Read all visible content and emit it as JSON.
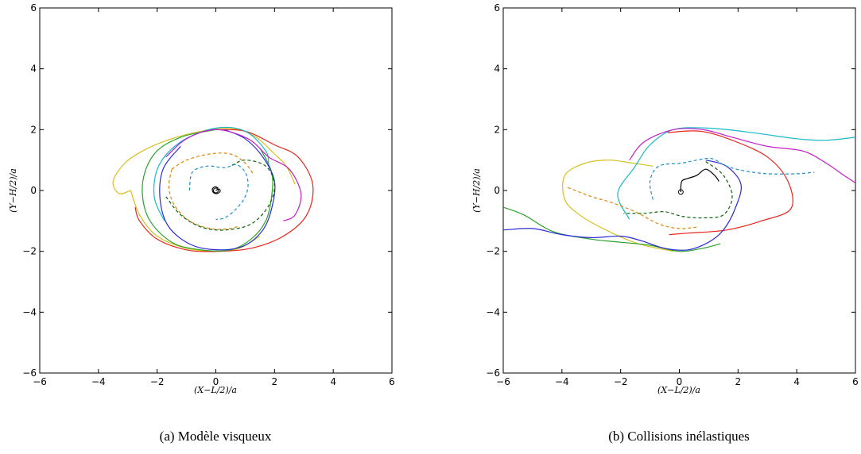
{
  "panels": [
    {
      "caption": "(a)  Modèle visqueux",
      "xlabel": "(X−L/2)/a",
      "ylabel": "(Y−H/2)/a",
      "chart_data": {
        "type": "line",
        "xlim": [
          -6,
          6
        ],
        "ylim": [
          -6,
          6
        ],
        "xticks": [
          "−6",
          "−4",
          "−2",
          "0",
          "2",
          "4",
          "6"
        ],
        "yticks": [
          "−6",
          "−4",
          "−2",
          "0",
          "2",
          "4",
          "6"
        ],
        "grid": false,
        "series": [
          {
            "color": "#d4c021",
            "dash": false,
            "points": [
              [
                -2.9,
                0.0
              ],
              [
                -3.3,
                -0.1
              ],
              [
                -3.5,
                0.3
              ],
              [
                -3.1,
                0.9
              ],
              [
                -2.4,
                1.35
              ],
              [
                -1.5,
                1.7
              ],
              [
                -0.5,
                1.95
              ],
              [
                0.5,
                2.05
              ],
              [
                1.3,
                1.8
              ],
              [
                2.0,
                1.2
              ],
              [
                2.4,
                0.8
              ],
              [
                2.7,
                0.2
              ]
            ]
          },
          {
            "color": "#d4c021",
            "dash": false,
            "points": [
              [
                -2.9,
                0.0
              ],
              [
                -2.6,
                -0.8
              ],
              [
                -2.0,
                -1.5
              ],
              [
                -1.0,
                -1.9
              ],
              [
                0,
                -2.0
              ],
              [
                0.8,
                -1.9
              ],
              [
                1.5,
                -1.5
              ]
            ]
          },
          {
            "color": "#e8241c",
            "dash": false,
            "points": [
              [
                0,
                2.0
              ],
              [
                1.0,
                1.95
              ],
              [
                2.0,
                1.5
              ],
              [
                2.8,
                1.1
              ],
              [
                3.3,
                0.2
              ],
              [
                3.1,
                -0.8
              ],
              [
                2.3,
                -1.5
              ],
              [
                1.2,
                -1.9
              ],
              [
                0,
                -2.0
              ],
              [
                -1.0,
                -1.95
              ],
              [
                -2.0,
                -1.6
              ],
              [
                -2.6,
                -1.0
              ],
              [
                -2.75,
                -0.55
              ]
            ]
          },
          {
            "color": "#2ca02c",
            "dash": false,
            "points": [
              [
                0,
                2.0
              ],
              [
                -1.2,
                1.75
              ],
              [
                -2.1,
                1.2
              ],
              [
                -2.5,
                0.2
              ],
              [
                -2.3,
                -0.9
              ],
              [
                -1.5,
                -1.7
              ],
              [
                -0.5,
                -1.95
              ],
              [
                0.5,
                -1.95
              ],
              [
                1.2,
                -1.6
              ],
              [
                1.7,
                -1.0
              ],
              [
                1.9,
                -0.2
              ],
              [
                1.9,
                0.6
              ],
              [
                1.5,
                1.4
              ]
            ]
          },
          {
            "color": "#18b9c8",
            "dash": false,
            "points": [
              [
                -1.75,
                -1.0
              ],
              [
                -2.1,
                -0.2
              ],
              [
                -1.95,
                0.8
              ],
              [
                -1.2,
                1.6
              ],
              [
                0,
                2.05
              ],
              [
                1.0,
                1.95
              ],
              [
                1.7,
                1.3
              ],
              [
                1.8,
                0.8
              ]
            ]
          },
          {
            "color": "#2a2ad6",
            "dash": false,
            "points": [
              [
                -1.2,
                1.45
              ],
              [
                -1.8,
                0.7
              ],
              [
                -1.9,
                -0.3
              ],
              [
                -1.6,
                -1.2
              ],
              [
                -0.8,
                -1.8
              ],
              [
                0.2,
                -1.95
              ],
              [
                1.0,
                -1.8
              ],
              [
                1.6,
                -1.3
              ],
              [
                1.9,
                -0.6
              ],
              [
                2.0,
                0.3
              ],
              [
                1.6,
                1.1
              ],
              [
                1.0,
                1.7
              ],
              [
                0.3,
                2.0
              ]
            ]
          },
          {
            "color": "#c21fc8",
            "dash": false,
            "points": [
              [
                -1.7,
                1.1
              ],
              [
                -1.0,
                1.7
              ],
              [
                0,
                2.0
              ],
              [
                1.1,
                1.7
              ],
              [
                1.8,
                1.1
              ],
              [
                2.5,
                0.7
              ],
              [
                2.9,
                -0.1
              ],
              [
                2.7,
                -0.8
              ],
              [
                2.3,
                -1.0
              ]
            ]
          },
          {
            "color": "#e0850c",
            "dash": true,
            "points": [
              [
                -1.5,
                0.7
              ],
              [
                -1.0,
                1.0
              ],
              [
                -0.2,
                1.2
              ],
              [
                0.5,
                1.2
              ],
              [
                1.0,
                0.9
              ],
              [
                1.3,
                0.5
              ]
            ]
          },
          {
            "color": "#e0850c",
            "dash": true,
            "points": [
              [
                -1.5,
                0.7
              ],
              [
                -1.6,
                0.1
              ],
              [
                -1.4,
                -0.5
              ],
              [
                -0.9,
                -1.0
              ],
              [
                -0.2,
                -1.25
              ],
              [
                0.5,
                -1.25
              ],
              [
                0.8,
                -1.15
              ]
            ]
          },
          {
            "color": "#0b610b",
            "dash": true,
            "points": [
              [
                -1.7,
                -0.2
              ],
              [
                -1.2,
                -0.8
              ],
              [
                -0.5,
                -1.2
              ],
              [
                0.3,
                -1.3
              ],
              [
                1.2,
                -1.1
              ],
              [
                1.8,
                -0.5
              ],
              [
                2.0,
                0.2
              ],
              [
                1.7,
                0.8
              ],
              [
                1.0,
                1.0
              ],
              [
                0.5,
                0.8
              ]
            ]
          },
          {
            "color": "#1f8fc8",
            "dash": true,
            "points": [
              [
                -0.9,
                0.0
              ],
              [
                -0.8,
                0.6
              ],
              [
                -0.3,
                0.8
              ],
              [
                0.3,
                0.75
              ],
              [
                0.7,
                0.85
              ],
              [
                1.0,
                0.6
              ],
              [
                1.1,
                0.2
              ],
              [
                1.0,
                -0.2
              ],
              [
                0.7,
                -0.6
              ],
              [
                0.3,
                -0.9
              ],
              [
                0.0,
                -0.95
              ]
            ]
          },
          {
            "color": "#000000",
            "dash": false,
            "points": [
              [
                0,
                0
              ],
              [
                0.1,
                0.05
              ],
              [
                0.15,
                -0.02
              ],
              [
                0.05,
                -0.1
              ],
              [
                -0.08,
                -0.07
              ],
              [
                -0.12,
                0.05
              ],
              [
                -0.02,
                0.12
              ],
              [
                0.08,
                0.08
              ]
            ]
          }
        ]
      }
    },
    {
      "caption": "(b)  Collisions inélastiques",
      "xlabel": "(X−L/2)/a",
      "ylabel": "(Y−H/2)/a",
      "chart_data": {
        "type": "line",
        "xlim": [
          -6,
          6
        ],
        "ylim": [
          -6,
          6
        ],
        "xticks": [
          "−6",
          "−4",
          "−2",
          "0",
          "2",
          "4",
          "6"
        ],
        "yticks": [
          "−6",
          "−4",
          "−2",
          "0",
          "2",
          "4",
          "6"
        ],
        "grid": false,
        "series": [
          {
            "color": "#d4c021",
            "dash": false,
            "points": [
              [
                -0.9,
                0.8
              ],
              [
                -1.6,
                0.9
              ],
              [
                -2.4,
                1.0
              ],
              [
                -3.2,
                0.9
              ],
              [
                -3.9,
                0.5
              ],
              [
                -3.9,
                -0.3
              ],
              [
                -3.4,
                -0.8
              ],
              [
                -2.5,
                -1.3
              ],
              [
                -1.4,
                -1.75
              ],
              [
                -0.2,
                -2.0
              ]
            ]
          },
          {
            "color": "#e8241c",
            "dash": false,
            "points": [
              [
                -0.4,
                1.9
              ],
              [
                0.7,
                1.95
              ],
              [
                1.8,
                1.65
              ],
              [
                3.0,
                1.1
              ],
              [
                3.7,
                0.3
              ],
              [
                3.8,
                -0.6
              ],
              [
                2.8,
                -1.0
              ],
              [
                1.6,
                -1.3
              ],
              [
                0.3,
                -1.4
              ],
              [
                -0.35,
                -1.45
              ]
            ]
          },
          {
            "color": "#2ca02c",
            "dash": false,
            "points": [
              [
                -6.0,
                -0.55
              ],
              [
                -5.3,
                -0.8
              ],
              [
                -4.3,
                -1.35
              ],
              [
                -3.0,
                -1.6
              ],
              [
                -2.0,
                -1.7
              ],
              [
                -1.0,
                -1.8
              ],
              [
                0,
                -2.0
              ],
              [
                0.8,
                -1.9
              ],
              [
                1.4,
                -1.75
              ]
            ]
          },
          {
            "color": "#18b9c8",
            "dash": false,
            "points": [
              [
                -1.7,
                -0.95
              ],
              [
                -2.1,
                -0.1
              ],
              [
                -1.5,
                0.8
              ],
              [
                -1.0,
                1.5
              ],
              [
                -0.2,
                2.0
              ],
              [
                1.0,
                2.05
              ],
              [
                2.5,
                1.9
              ],
              [
                4.0,
                1.7
              ],
              [
                5.0,
                1.65
              ],
              [
                6.0,
                1.75
              ]
            ]
          },
          {
            "color": "#2a2ad6",
            "dash": false,
            "points": [
              [
                -6.0,
                -1.3
              ],
              [
                -5.0,
                -1.25
              ],
              [
                -4.0,
                -1.45
              ],
              [
                -3.0,
                -1.55
              ],
              [
                -2.0,
                -1.5
              ],
              [
                -1.3,
                -1.65
              ],
              [
                -0.5,
                -1.9
              ],
              [
                0.3,
                -1.95
              ],
              [
                1.0,
                -1.7
              ],
              [
                1.5,
                -1.3
              ],
              [
                1.9,
                -0.6
              ],
              [
                2.1,
                0.2
              ],
              [
                1.6,
                0.8
              ],
              [
                0.9,
                1.0
              ]
            ]
          },
          {
            "color": "#c21fc8",
            "dash": false,
            "points": [
              [
                -1.7,
                1.0
              ],
              [
                -1.2,
                1.6
              ],
              [
                -0.2,
                2.0
              ],
              [
                0.8,
                2.0
              ],
              [
                1.8,
                1.75
              ],
              [
                3.0,
                1.45
              ],
              [
                4.2,
                1.3
              ],
              [
                5.0,
                0.9
              ],
              [
                5.6,
                0.5
              ],
              [
                6.0,
                0.25
              ]
            ]
          },
          {
            "color": "#e0850c",
            "dash": true,
            "points": [
              [
                -3.8,
                0.1
              ],
              [
                -3.0,
                -0.2
              ],
              [
                -2.3,
                -0.4
              ],
              [
                -1.5,
                -0.7
              ],
              [
                -0.7,
                -1.1
              ],
              [
                0.0,
                -1.25
              ],
              [
                0.6,
                -1.2
              ]
            ]
          },
          {
            "color": "#0b610b",
            "dash": true,
            "points": [
              [
                0.9,
                0.95
              ],
              [
                1.5,
                0.5
              ],
              [
                1.8,
                -0.2
              ],
              [
                1.5,
                -0.8
              ],
              [
                0.8,
                -0.9
              ],
              [
                0.1,
                -0.85
              ],
              [
                -0.5,
                -0.7
              ],
              [
                -1.2,
                -0.75
              ],
              [
                -1.9,
                -0.75
              ]
            ]
          },
          {
            "color": "#1f8fc8",
            "dash": true,
            "points": [
              [
                -0.9,
                -0.3
              ],
              [
                -1.0,
                0.3
              ],
              [
                -0.7,
                0.8
              ],
              [
                0.1,
                0.9
              ],
              [
                0.6,
                1.0
              ],
              [
                1.1,
                1.05
              ],
              [
                1.6,
                0.8
              ],
              [
                2.2,
                0.65
              ],
              [
                3.0,
                0.55
              ],
              [
                4.0,
                0.55
              ],
              [
                4.6,
                0.6
              ]
            ]
          },
          {
            "color": "#000000",
            "dash": false,
            "points": [
              [
                0.05,
                -0.05
              ],
              [
                0.08,
                0.3
              ],
              [
                0.3,
                0.4
              ],
              [
                0.6,
                0.5
              ],
              [
                0.9,
                0.7
              ],
              [
                1.2,
                0.5
              ],
              [
                1.35,
                0.3
              ]
            ]
          }
        ]
      }
    }
  ]
}
